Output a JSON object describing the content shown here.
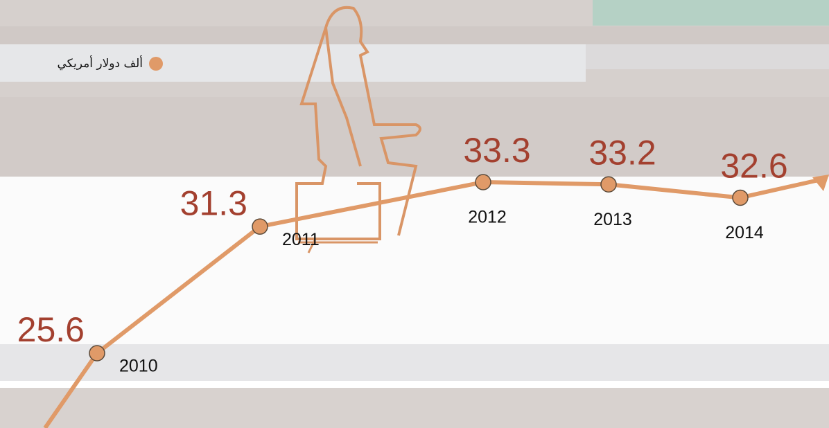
{
  "chart_data": {
    "type": "line",
    "categories": [
      "2010",
      "2011",
      "2012",
      "2013",
      "2014"
    ],
    "series": [
      {
        "name": "ألف دولار أمريكي",
        "color": "#e09a68",
        "values": [
          25.6,
          31.3,
          33.3,
          33.2,
          32.6
        ]
      }
    ]
  }
}
